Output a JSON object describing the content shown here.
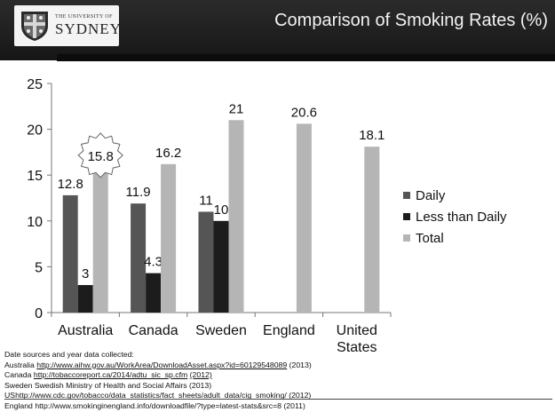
{
  "header": {
    "title": "Comparison of Smoking Rates (%)",
    "logo_small": "THE UNIVERSITY OF",
    "logo_big": "SYDNEY"
  },
  "chart_data": {
    "type": "bar",
    "categories": [
      "Australia",
      "Canada",
      "Sweden",
      "England",
      "United States"
    ],
    "category_lines": [
      [
        "Australia"
      ],
      [
        "Canada"
      ],
      [
        "Sweden"
      ],
      [
        "England"
      ],
      [
        "United",
        "States"
      ]
    ],
    "series": [
      {
        "name": "Daily",
        "values": [
          12.8,
          11.9,
          11,
          null,
          null
        ],
        "labels": [
          "12.8",
          "11.9",
          "11",
          "",
          ""
        ],
        "color": "#555555"
      },
      {
        "name": "Less than Daily",
        "values": [
          3,
          4.3,
          10,
          null,
          null
        ],
        "labels": [
          "3",
          "4.3",
          "10",
          "",
          ""
        ],
        "color": "#1c1c1c"
      },
      {
        "name": "Total",
        "values": [
          15.8,
          16.2,
          21,
          20.6,
          18.1
        ],
        "labels": [
          "15.8",
          "16.2",
          "21",
          "20.6",
          "18.1"
        ],
        "color": "#b5b5b5"
      }
    ],
    "ylim": [
      0,
      25
    ],
    "yticks": [
      0,
      5,
      10,
      15,
      20,
      25
    ],
    "grid": false,
    "legend": "right",
    "highlight": {
      "series": "Total",
      "category": "Australia",
      "shape": "starburst"
    }
  },
  "sources": {
    "heading": "Date sources and year data collected:",
    "lines": [
      {
        "country": "Australia",
        "link": "http://www.aihw.gov.au/WorkArea/DownloadAsset.aspx?id=60129548089",
        "year": "(2013)"
      },
      {
        "country": "Canada",
        "link": "http://tobaccoreport.ca/2014/adtu_sic_sp.cfm",
        "year": "(2012)"
      },
      {
        "country": "Sweden",
        "link": "",
        "year": "Swedish Ministry of Health and Social Affairs (2013)"
      },
      {
        "country": "US",
        "link": "http://www.cdc.gov/tobacco/data_statistics/fact_sheets/adult_data/cig_smoking/",
        "year": "(2012)"
      },
      {
        "country": "England",
        "link": "",
        "year": "http://www.smokinginengland.info/downloadfile/?type=latest-stats&src=8 (2011)"
      }
    ]
  }
}
